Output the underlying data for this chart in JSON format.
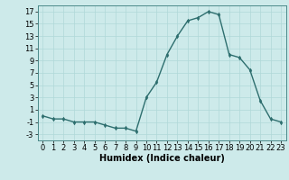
{
  "x": [
    0,
    1,
    2,
    3,
    4,
    5,
    6,
    7,
    8,
    9,
    10,
    11,
    12,
    13,
    14,
    15,
    16,
    17,
    18,
    19,
    20,
    21,
    22,
    23
  ],
  "y": [
    0,
    -0.5,
    -0.5,
    -1,
    -1,
    -1,
    -1.5,
    -2,
    -2,
    -2.5,
    3,
    5.5,
    10,
    13,
    15.5,
    16,
    17,
    16.5,
    10,
    9.5,
    7.5,
    2.5,
    -0.5,
    -1
  ],
  "line_color": "#2d6e6e",
  "marker": "d",
  "marker_size": 2.5,
  "bg_color": "#cdeaea",
  "grid_color": "#b0d8d8",
  "xlabel": "Humidex (Indice chaleur)",
  "xlim": [
    -0.5,
    23.5
  ],
  "ylim": [
    -4,
    18
  ],
  "yticks": [
    -3,
    -1,
    1,
    3,
    5,
    7,
    9,
    11,
    13,
    15,
    17
  ],
  "xticks": [
    0,
    1,
    2,
    3,
    4,
    5,
    6,
    7,
    8,
    9,
    10,
    11,
    12,
    13,
    14,
    15,
    16,
    17,
    18,
    19,
    20,
    21,
    22,
    23
  ],
  "xlabel_fontsize": 7,
  "tick_fontsize": 6,
  "line_width": 1.0
}
